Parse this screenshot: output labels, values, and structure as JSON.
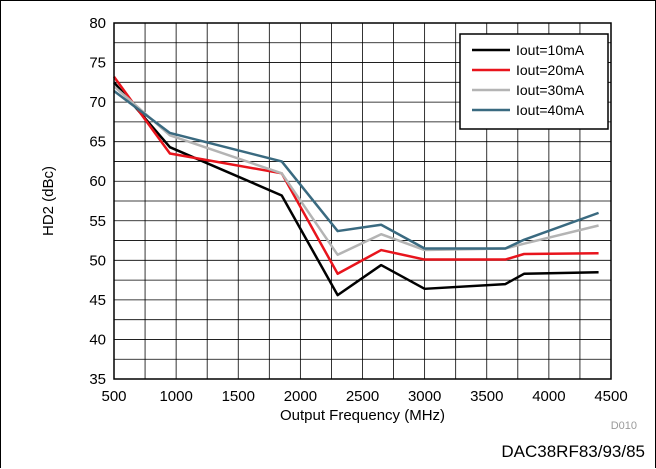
{
  "chart_data": {
    "type": "line",
    "xlabel": "Output Frequency (MHz)",
    "ylabel": "HD2 (dBc)",
    "xlim": [
      500,
      4500
    ],
    "ylim": [
      35,
      80
    ],
    "x_ticks": [
      500,
      1000,
      1500,
      2000,
      2500,
      3000,
      3500,
      4000,
      4500
    ],
    "y_ticks": [
      35,
      40,
      45,
      50,
      55,
      60,
      65,
      70,
      75,
      80
    ],
    "grid": "on",
    "legend_position": "top-right",
    "series": [
      {
        "name": "Iout=10mA",
        "color": "#000000",
        "x": [
          500,
          950,
          1850,
          2300,
          2650,
          3000,
          3650,
          3800,
          4400
        ],
        "y": [
          72.5,
          64.3,
          58.2,
          45.6,
          49.4,
          46.4,
          47.0,
          48.3,
          48.5
        ]
      },
      {
        "name": "Iout=20mA",
        "color": "#e8141c",
        "x": [
          500,
          950,
          1850,
          2300,
          2650,
          3000,
          3650,
          3800,
          4400
        ],
        "y": [
          73.2,
          63.5,
          61.0,
          48.3,
          51.3,
          50.1,
          50.1,
          50.8,
          50.9
        ]
      },
      {
        "name": "Iout=30mA",
        "color": "#b4b4b4",
        "x": [
          500,
          950,
          1850,
          2300,
          2650,
          3000,
          3650,
          3800,
          4400
        ],
        "y": [
          72.0,
          65.8,
          61.0,
          50.7,
          53.3,
          51.3,
          51.5,
          52.1,
          54.4
        ]
      },
      {
        "name": "Iout=40mA",
        "color": "#3a6a80",
        "x": [
          500,
          950,
          1850,
          2300,
          2650,
          3000,
          3650,
          3800,
          4400
        ],
        "y": [
          71.4,
          66.1,
          62.5,
          53.7,
          54.5,
          51.5,
          51.5,
          52.6,
          56.0
        ]
      }
    ]
  },
  "footer": {
    "code": "D010",
    "part_number": "DAC38RF83/93/85"
  }
}
